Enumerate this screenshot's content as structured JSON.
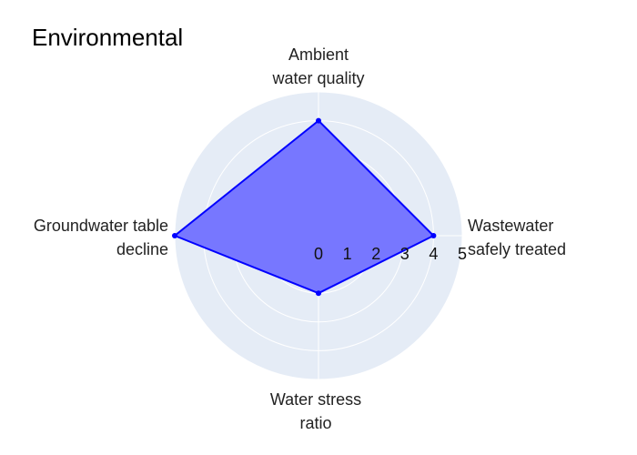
{
  "chart_data": {
    "type": "radar",
    "title": "Environmental",
    "axes": [
      {
        "label_lines": [
          "Wastewater",
          "safely treated"
        ],
        "value": 4
      },
      {
        "label_lines": [
          "Ambient",
          "water quality"
        ],
        "value": 4
      },
      {
        "label_lines": [
          "Groundwater table",
          "decline"
        ],
        "value": 5
      },
      {
        "label_lines": [
          "Water stress",
          "ratio"
        ],
        "value": 2
      }
    ],
    "radial_range": [
      0,
      5
    ],
    "radial_ticks": [
      "0",
      "1",
      "2",
      "3",
      "4",
      "5"
    ],
    "grid": true,
    "colors": {
      "polar_background": "#e5ecf6",
      "grid": "#ffffff",
      "line": "#0000ff",
      "fill": "#7777ff"
    }
  }
}
